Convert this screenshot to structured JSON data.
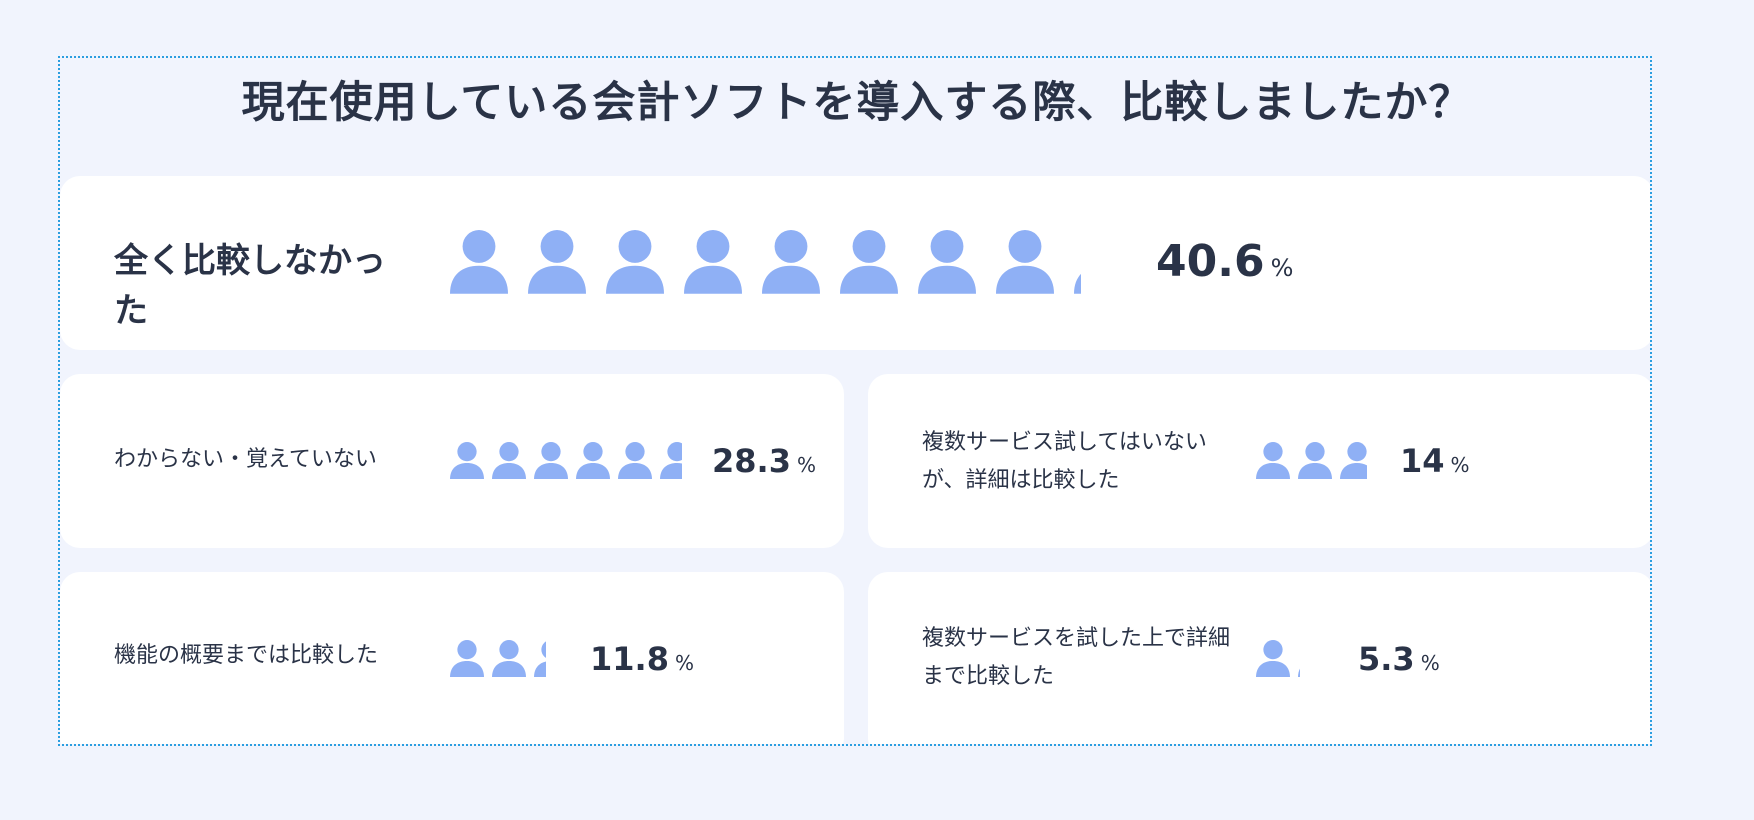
{
  "title": "現在使用している会計ソフトを導入する際、比較しましたか？",
  "colors": {
    "icon": "#8fb0f5",
    "card": "#ffffff",
    "background": "#f1f4fd",
    "text": "#2a3347",
    "frame": "#2b9ee0"
  },
  "icon_name": "person-icon",
  "chart_data": {
    "type": "bar",
    "style": "pictograph",
    "unit_per_icon_percent": 5,
    "unit": "%",
    "categories": [
      "全く比較しなかった",
      "わからない・覚えていない",
      "複数サービス試してはいないが、詳細は比較した",
      "機能の概要までは比較した",
      "複数サービスを試した上で詳細まで比較した"
    ],
    "values": [
      40.6,
      28.3,
      14,
      11.8,
      5.3
    ],
    "value_labels": [
      "40.6",
      "28.3",
      "14",
      "11.8",
      "5.3"
    ]
  },
  "items": [
    {
      "label": "全く比較しなかった",
      "value": 40.6,
      "value_text": "40.6",
      "unit": "%"
    },
    {
      "label": "わからない・覚えていない",
      "value": 28.3,
      "value_text": "28.3",
      "unit": "%"
    },
    {
      "label": "複数サービス試してはいないが、詳細は比較した",
      "value": 14,
      "value_text": "14",
      "unit": "%"
    },
    {
      "label": "機能の概要までは比較した",
      "value": 11.8,
      "value_text": "11.8",
      "unit": "%"
    },
    {
      "label": "複数サービスを試した上で詳細まで比較した",
      "value": 5.3,
      "value_text": "5.3",
      "unit": "%"
    }
  ]
}
